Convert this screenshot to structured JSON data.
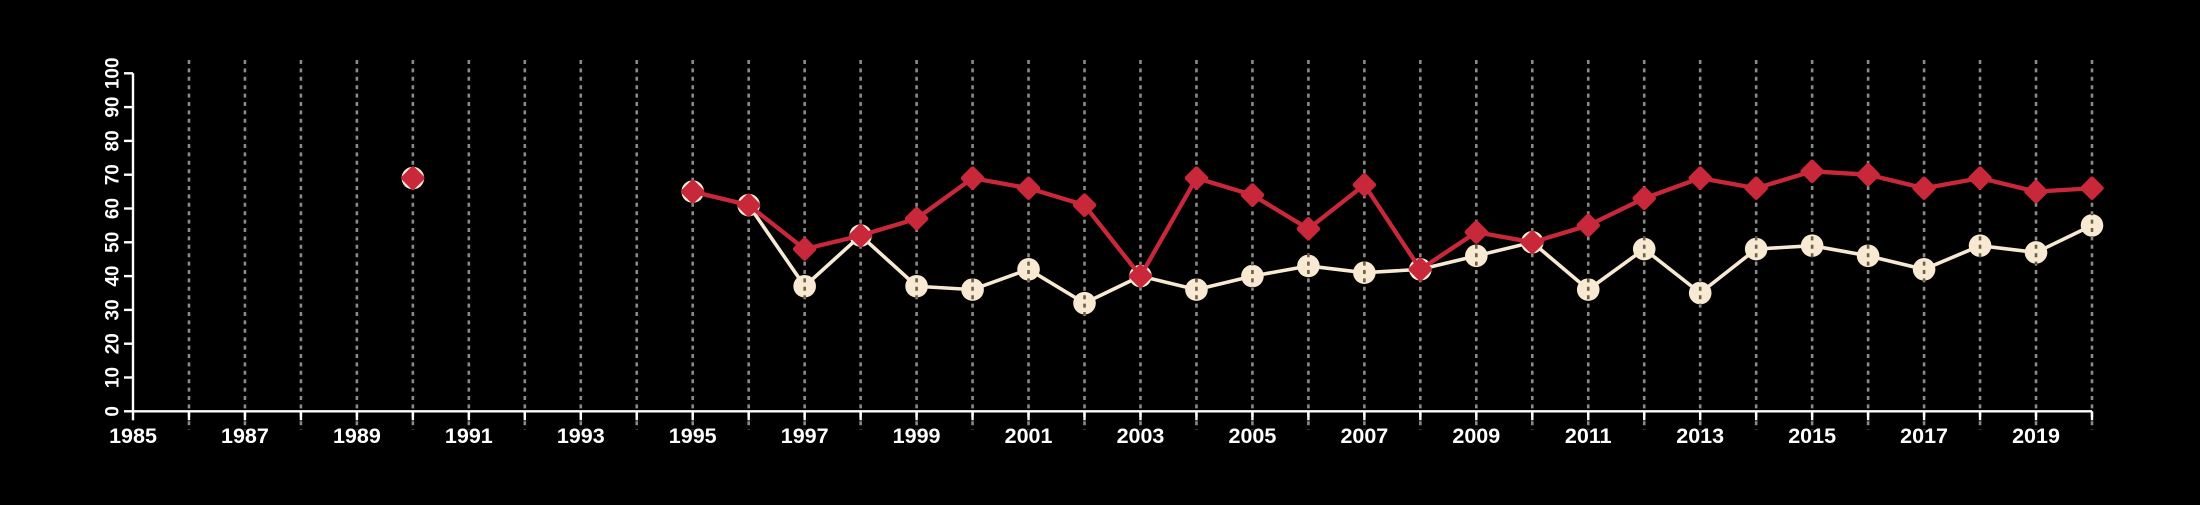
{
  "colors": {
    "background": "#000000",
    "axis": "#ffffff",
    "grid": "#8a8a8a",
    "red_series": "#c9283a",
    "cream_series": "#f7e9d2"
  },
  "chart_data": {
    "type": "line",
    "title": "",
    "xlabel": "",
    "ylabel": "",
    "xlim": [
      1985,
      2020
    ],
    "ylim": [
      0,
      100
    ],
    "grid": "vertical-dashed-every-year",
    "legend": "none",
    "x_tick_years_step": 1,
    "x_label_years": [
      1985,
      1987,
      1989,
      1991,
      1993,
      1995,
      1997,
      1999,
      2001,
      2003,
      2005,
      2007,
      2009,
      2011,
      2013,
      2015,
      2017,
      2019
    ],
    "y_ticks": [
      0,
      10,
      20,
      30,
      40,
      50,
      60,
      70,
      80,
      90,
      100
    ],
    "x": [
      1990,
      1995,
      1996,
      1997,
      1998,
      1999,
      2000,
      2001,
      2002,
      2003,
      2004,
      2005,
      2006,
      2007,
      2008,
      2009,
      2010,
      2011,
      2012,
      2013,
      2014,
      2015,
      2016,
      2017,
      2018,
      2019,
      2020
    ],
    "series": [
      {
        "name": "cream-circle-series",
        "marker": "circle",
        "color": "#f7e9d2",
        "values": [
          69,
          65,
          61,
          37,
          52,
          37,
          36,
          42,
          32,
          40,
          36,
          40,
          43,
          41,
          42,
          46,
          50,
          36,
          48,
          35,
          48,
          49,
          46,
          42,
          49,
          47,
          55
        ]
      },
      {
        "name": "red-diamond-series",
        "marker": "diamond",
        "color": "#c9283a",
        "values": [
          69,
          65,
          61,
          48,
          52,
          57,
          69,
          66,
          61,
          40,
          69,
          64,
          54,
          67,
          42,
          53,
          50,
          55,
          63,
          69,
          66,
          71,
          70,
          66,
          69,
          65,
          66
        ]
      }
    ],
    "notes": "points exist only for 1990 and 1995-2020; 1990 is isolated (no connecting line); series overlap exactly in 1990, 1995, 1996, 1998, 2003, 2008, 2010"
  }
}
